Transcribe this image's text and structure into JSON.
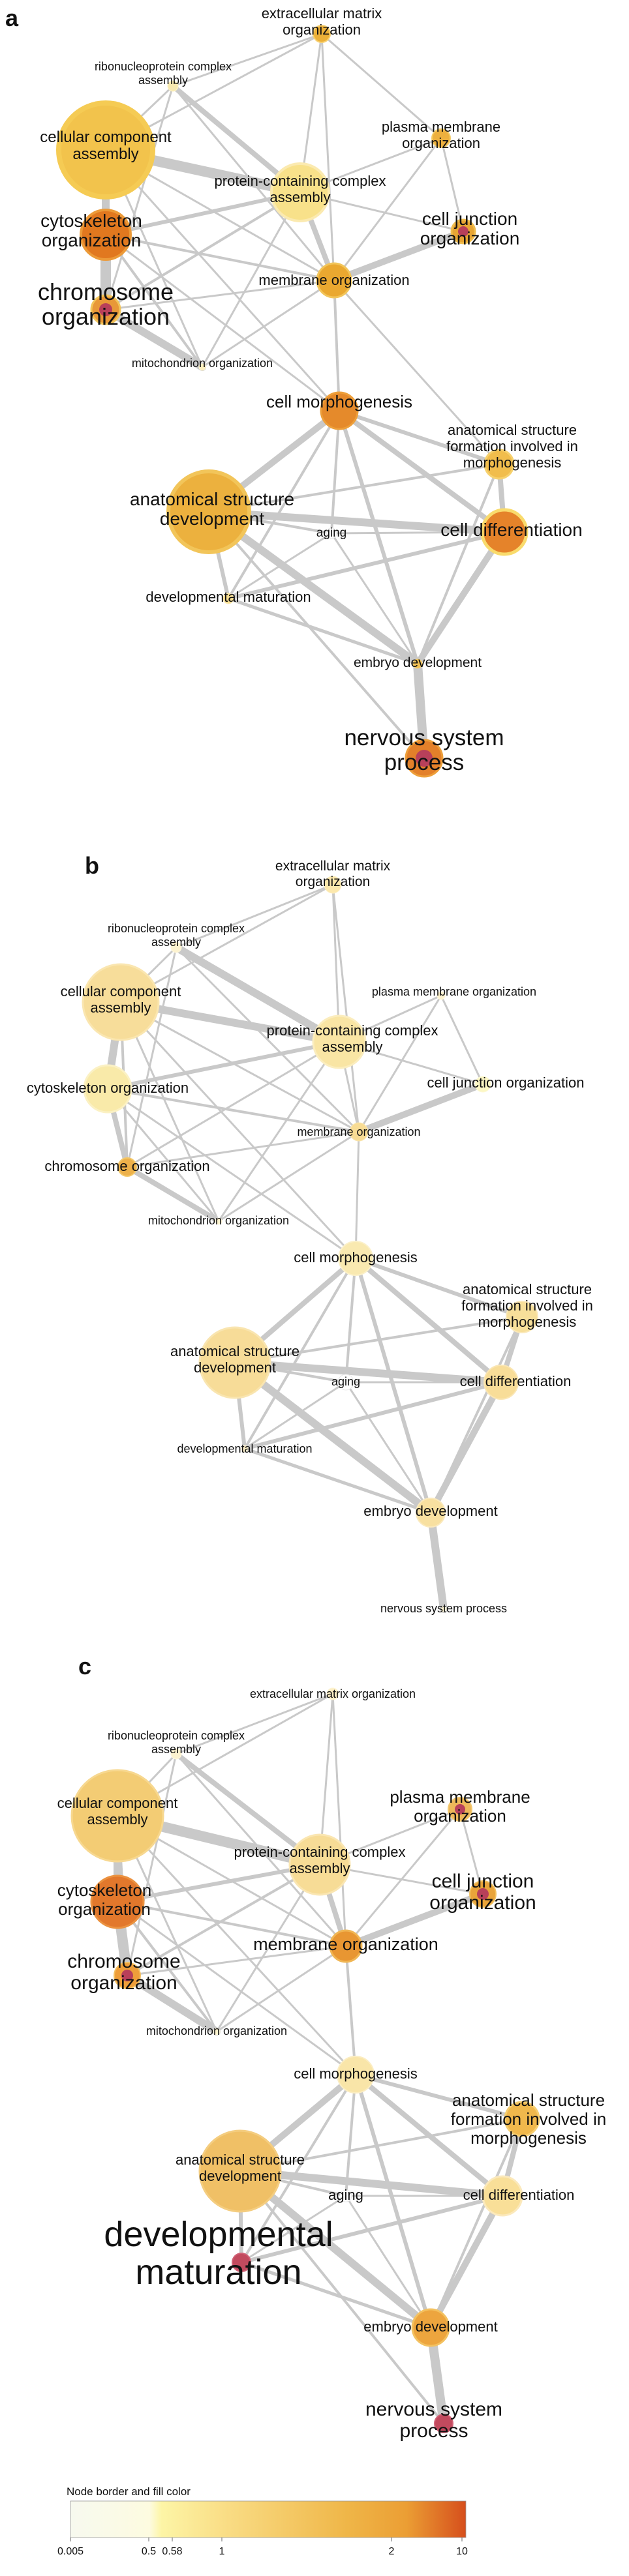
{
  "legend": {
    "title": "Node border and fill color",
    "ticks": [
      "0.005",
      "0.5",
      "0.58",
      "1",
      "2",
      "10"
    ]
  },
  "panels": [
    {
      "letter": "a",
      "nodes": [
        {
          "id": "ecm",
          "label": [
            "extracellular matrix",
            "organization"
          ]
        },
        {
          "id": "rnp",
          "label": [
            "ribonucleoprotein complex",
            "assembly"
          ]
        },
        {
          "id": "cca",
          "label": [
            "cellular component",
            "assembly"
          ]
        },
        {
          "id": "pmo",
          "label": [
            "plasma membrane",
            "organization"
          ]
        },
        {
          "id": "pca",
          "label": [
            "protein-containing complex",
            "assembly"
          ]
        },
        {
          "id": "cso",
          "label": [
            "cytoskeleton",
            "organization"
          ]
        },
        {
          "id": "cjo",
          "label": [
            "cell junction",
            "organization"
          ]
        },
        {
          "id": "mo",
          "label": [
            "membrane organization"
          ]
        },
        {
          "id": "cho",
          "label": [
            "chromosome",
            "organization"
          ]
        },
        {
          "id": "mito",
          "label": [
            "mitochondrion organization"
          ]
        },
        {
          "id": "cm",
          "label": [
            "cell morphogenesis"
          ]
        },
        {
          "id": "asf",
          "label": [
            "anatomical structure",
            "formation involved in",
            "morphogenesis"
          ]
        },
        {
          "id": "asd",
          "label": [
            "anatomical structure",
            "development"
          ]
        },
        {
          "id": "aging",
          "label": [
            "aging"
          ]
        },
        {
          "id": "cd",
          "label": [
            "cell differentiation"
          ]
        },
        {
          "id": "dm",
          "label": [
            "developmental maturation"
          ]
        },
        {
          "id": "ed",
          "label": [
            "embryo development"
          ]
        },
        {
          "id": "nsp",
          "label": [
            "nervous system",
            "process"
          ]
        }
      ]
    },
    {
      "letter": "b",
      "nodes": [
        {
          "id": "ecm",
          "label": [
            "extracellular matrix",
            "organization"
          ]
        },
        {
          "id": "rnp",
          "label": [
            "ribonucleoprotein complex",
            "assembly"
          ]
        },
        {
          "id": "cca",
          "label": [
            "cellular component",
            "assembly"
          ]
        },
        {
          "id": "pmo",
          "label": [
            "plasma membrane organization"
          ]
        },
        {
          "id": "pca",
          "label": [
            "protein-containing complex",
            "assembly"
          ]
        },
        {
          "id": "cso",
          "label": [
            "cytoskeleton organization"
          ]
        },
        {
          "id": "cjo",
          "label": [
            "cell junction organization"
          ]
        },
        {
          "id": "mo",
          "label": [
            "membrane organization"
          ]
        },
        {
          "id": "cho",
          "label": [
            "chromosome organization"
          ]
        },
        {
          "id": "mito",
          "label": [
            "mitochondrion organization"
          ]
        },
        {
          "id": "cm",
          "label": [
            "cell morphogenesis"
          ]
        },
        {
          "id": "asf",
          "label": [
            "anatomical structure",
            "formation involved in",
            "morphogenesis"
          ]
        },
        {
          "id": "asd",
          "label": [
            "anatomical structure",
            "development"
          ]
        },
        {
          "id": "aging",
          "label": [
            "aging"
          ]
        },
        {
          "id": "cd",
          "label": [
            "cell differentiation"
          ]
        },
        {
          "id": "dm",
          "label": [
            "developmental maturation"
          ]
        },
        {
          "id": "ed",
          "label": [
            "embryo development"
          ]
        },
        {
          "id": "nsp",
          "label": [
            "nervous system process"
          ]
        }
      ]
    },
    {
      "letter": "c",
      "nodes": [
        {
          "id": "ecm",
          "label": [
            "extracellular matrix organization"
          ]
        },
        {
          "id": "rnp",
          "label": [
            "ribonucleoprotein complex",
            "assembly"
          ]
        },
        {
          "id": "cca",
          "label": [
            "cellular component",
            "assembly"
          ]
        },
        {
          "id": "pmo",
          "label": [
            "plasma membrane",
            "organization"
          ]
        },
        {
          "id": "pca",
          "label": [
            "protein-containing complex",
            "assembly"
          ]
        },
        {
          "id": "cso",
          "label": [
            "cytoskeleton",
            "organization"
          ]
        },
        {
          "id": "cjo",
          "label": [
            "cell junction",
            "organization"
          ]
        },
        {
          "id": "mo",
          "label": [
            "membrane organization"
          ]
        },
        {
          "id": "cho",
          "label": [
            "chromosome",
            "organization"
          ]
        },
        {
          "id": "mito",
          "label": [
            "mitochondrion organization"
          ]
        },
        {
          "id": "cm",
          "label": [
            "cell morphogenesis"
          ]
        },
        {
          "id": "asf",
          "label": [
            "anatomical structure",
            "formation involved in",
            "morphogenesis"
          ]
        },
        {
          "id": "asd",
          "label": [
            "anatomical structure",
            "development"
          ]
        },
        {
          "id": "aging",
          "label": [
            "aging"
          ]
        },
        {
          "id": "cd",
          "label": [
            "cell differentiation"
          ]
        },
        {
          "id": "dm",
          "label": [
            "developmental",
            "maturation"
          ]
        },
        {
          "id": "ed",
          "label": [
            "embryo development"
          ]
        },
        {
          "id": "nsp",
          "label": [
            "nervous system",
            "process"
          ]
        }
      ]
    }
  ]
}
